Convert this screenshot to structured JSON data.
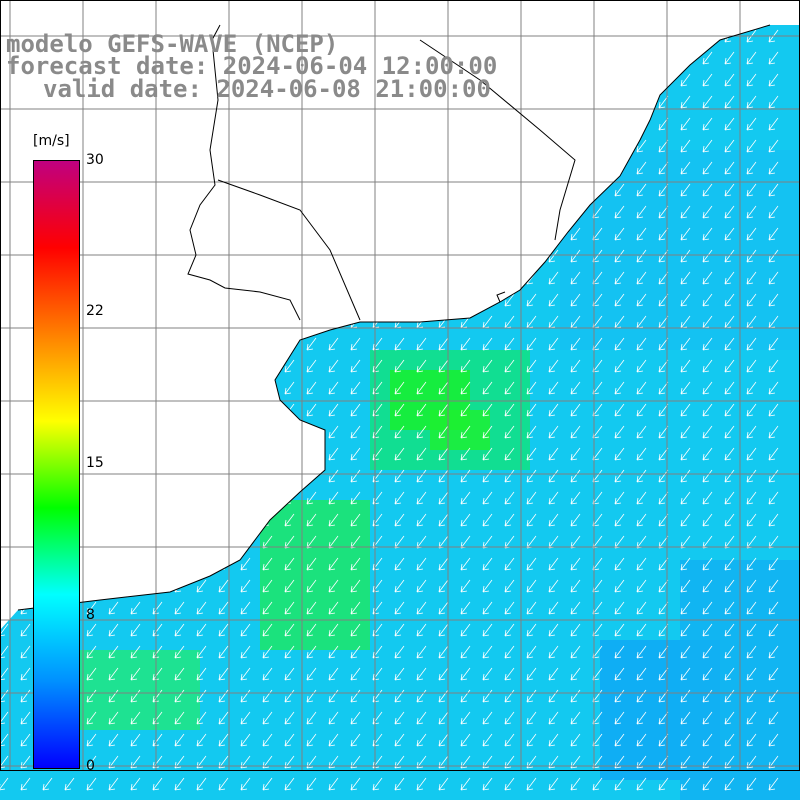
{
  "title": {
    "line1": "modelo GEFS-WAVE (NCEP)",
    "line2": "forecast date: 2024-06-04 12:00:00",
    "line3": "valid date: 2024-06-08 21:00:00"
  },
  "colorbar": {
    "unit": "[m/s]",
    "min": 0,
    "max": 30,
    "tick_labels": [
      "30",
      "22",
      "15",
      "8",
      "0"
    ],
    "tick_values": [
      30,
      22,
      15,
      8,
      0
    ],
    "color_stops": [
      "#0000ff",
      "#0090ff",
      "#00ffff",
      "#00ff00",
      "#ffff00",
      "#ff8000",
      "#ff0000",
      "#c00080"
    ]
  },
  "map": {
    "land_color": "#ffffff",
    "coast_color": "#000000",
    "grid_color": "#808080",
    "arrow_color": "#ffffff",
    "wind_direction": "from north-east toward south-west"
  }
}
